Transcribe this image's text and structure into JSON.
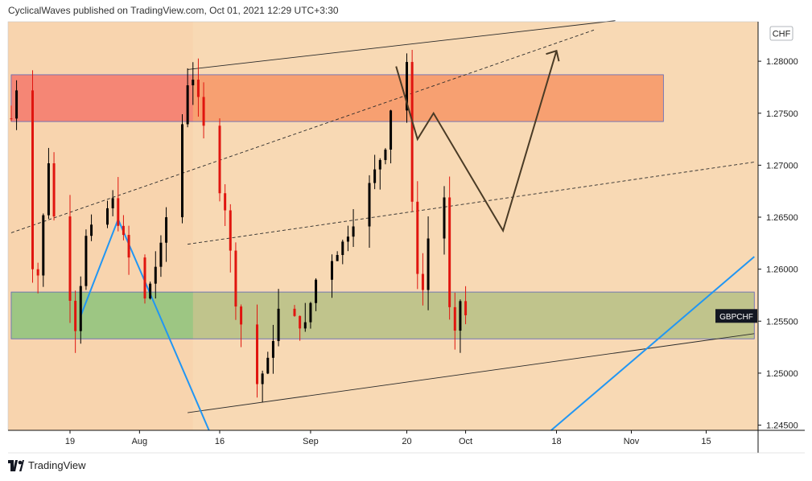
{
  "header": {
    "publisher": "CyclicalWaves published on TradingView.com, Oct 01, 2021 12:29 UTC+3:30"
  },
  "footer": {
    "brand": "TradingView",
    "logo_icon": "tradingview-logo-icon"
  },
  "colors": {
    "background": "#f8d9b4",
    "background_left": "#f8d4ae",
    "resistance_zone": "#f7a071",
    "resistance_zone_left": "#f58675",
    "support_zone": "#c0c48c",
    "support_zone_left": "#9dc683",
    "candle_up": "#000000",
    "candle_down": "#e0150f",
    "trendline_blue": "#2196f3",
    "projection_path": "#4a3b26"
  },
  "chart_data": {
    "type": "candlestick",
    "symbol": "GBPCHF",
    "currency_label": "CHF",
    "x_axis_ticks": [
      "19",
      "Aug",
      "16",
      "Sep",
      "20",
      "Oct",
      "18",
      "Nov",
      "15"
    ],
    "y_axis_ticks": [
      "1.28000",
      "1.27500",
      "1.27000",
      "1.26500",
      "1.26000",
      "1.25500",
      "1.25000",
      "1.24500"
    ],
    "ylim": [
      1.2445,
      1.2838
    ],
    "last_price": 1.2555,
    "anchors": [
      {
        "d": "2021-07-08",
        "v": 1.2745
      },
      {
        "d": "2021-07-09",
        "v": 1.2775
      },
      {
        "d": "2021-07-12",
        "v": 1.2605
      },
      {
        "d": "2021-07-13",
        "v": 1.2595
      },
      {
        "d": "2021-07-15",
        "v": 1.2705
      },
      {
        "d": "2021-07-16",
        "v": 1.265
      },
      {
        "d": "2021-07-19",
        "v": 1.2575
      },
      {
        "d": "2021-07-20",
        "v": 1.2545
      },
      {
        "d": "2021-07-22",
        "v": 1.263
      },
      {
        "d": "2021-07-27",
        "v": 1.2665
      },
      {
        "d": "2021-07-30",
        "v": 1.261
      },
      {
        "d": "2021-08-02",
        "v": 1.257
      },
      {
        "d": "2021-08-05",
        "v": 1.262
      },
      {
        "d": "2021-08-09",
        "v": 1.274
      },
      {
        "d": "2021-08-10",
        "v": 1.278
      },
      {
        "d": "2021-08-11",
        "v": 1.2785
      },
      {
        "d": "2021-08-13",
        "v": 1.2735
      },
      {
        "d": "2021-08-17",
        "v": 1.266
      },
      {
        "d": "2021-08-19",
        "v": 1.257
      },
      {
        "d": "2021-08-21",
        "v": 1.2525
      },
      {
        "d": "2021-08-23",
        "v": 1.249
      },
      {
        "d": "2021-08-25",
        "v": 1.251
      },
      {
        "d": "2021-08-27",
        "v": 1.256
      },
      {
        "d": "2021-09-01",
        "v": 1.2545
      },
      {
        "d": "2021-09-03",
        "v": 1.259
      },
      {
        "d": "2021-09-08",
        "v": 1.2625
      },
      {
        "d": "2021-09-13",
        "v": 1.268
      },
      {
        "d": "2021-09-16",
        "v": 1.272
      },
      {
        "d": "2021-09-17",
        "v": 1.2755
      },
      {
        "d": "2021-09-18",
        "v": 1.279
      },
      {
        "d": "2021-09-20",
        "v": 1.28
      },
      {
        "d": "2021-09-21",
        "v": 1.266
      },
      {
        "d": "2021-09-22",
        "v": 1.26
      },
      {
        "d": "2021-09-23",
        "v": 1.258
      },
      {
        "d": "2021-09-25",
        "v": 1.268
      },
      {
        "d": "2021-09-27",
        "v": 1.267
      },
      {
        "d": "2021-09-28",
        "v": 1.256
      },
      {
        "d": "2021-09-29",
        "v": 1.2535
      },
      {
        "d": "2021-09-30",
        "v": 1.257
      },
      {
        "d": "2021-10-01",
        "v": 1.2555
      }
    ],
    "zones": [
      {
        "name": "resistance",
        "from": "2021-07-08",
        "to": "2021-11-07",
        "top": 1.2787,
        "bottom": 1.2742
      },
      {
        "name": "support",
        "from": "2021-07-08",
        "to": "2021-11-24",
        "top": 1.2578,
        "bottom": 1.2533
      }
    ],
    "lines": [
      {
        "name": "channel-upper",
        "style": "solid",
        "p1": {
          "d": "2021-08-10",
          "v": 1.2792
        },
        "p2": {
          "d": "2021-10-29",
          "v": 1.2839
        }
      },
      {
        "name": "channel-lower",
        "style": "solid",
        "p1": {
          "d": "2021-08-10",
          "v": 1.2462
        },
        "p2": {
          "d": "2021-11-24",
          "v": 1.2538
        }
      },
      {
        "name": "dashed-upper",
        "style": "dashed",
        "p1": {
          "d": "2021-07-08",
          "v": 1.2635
        },
        "p2": {
          "d": "2021-10-25",
          "v": 1.283
        }
      },
      {
        "name": "dashed-mid",
        "style": "dashed",
        "p1": {
          "d": "2021-08-10",
          "v": 1.2624
        },
        "p2": {
          "d": "2021-11-24",
          "v": 1.2703
        }
      }
    ],
    "blue_lines": [
      {
        "name": "blue-trend-left",
        "p1": {
          "d": "2021-07-21",
          "v": 1.2555
        },
        "p2": {
          "d": "2021-07-28",
          "v": 1.2648
        },
        "p3": {
          "d": "2021-08-14",
          "v": 1.2445
        }
      },
      {
        "name": "blue-trend-right",
        "p1": {
          "d": "2021-10-17",
          "v": 1.2445
        },
        "p2": {
          "d": "2021-11-24",
          "v": 1.2612
        }
      }
    ],
    "projection_path": [
      {
        "d": "2021-09-18",
        "v": 1.2795
      },
      {
        "d": "2021-09-22",
        "v": 1.2725
      },
      {
        "d": "2021-09-25",
        "v": 1.275
      },
      {
        "d": "2021-10-08",
        "v": 1.2637
      },
      {
        "d": "2021-10-18",
        "v": 1.281
      }
    ]
  }
}
